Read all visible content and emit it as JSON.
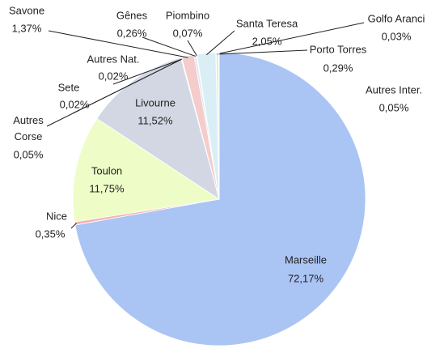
{
  "chart_data": {
    "type": "pie",
    "categories": [
      "Marseille",
      "Nice",
      "Toulon",
      "Livourne",
      "Autres Corse",
      "Sete",
      "Autres Nat.",
      "Savone",
      "Gênes",
      "Piombino",
      "Santa Teresa",
      "Golfo Aranci",
      "Porto Torres",
      "Autres Inter."
    ],
    "values": [
      72.17,
      0.35,
      11.75,
      11.52,
      0.05,
      0.02,
      0.02,
      1.37,
      0.26,
      0.07,
      2.05,
      0.03,
      0.29,
      0.05
    ],
    "value_labels": [
      "72,17%",
      "0,35%",
      "11,75%",
      "11,52%",
      "0,05%",
      "0,02%",
      "0,02%",
      "1,37%",
      "0,26%",
      "0,07%",
      "2,05%",
      "0,03%",
      "0,29%",
      "0,05%"
    ],
    "colors": [
      "#aac4f4",
      "#f4b4b4",
      "#eefdc8",
      "#d2d7e3",
      "#c8e8b0",
      "#e8d8f0",
      "#e6e6e6",
      "#f4cccc",
      "#dfe7f3",
      "#cfe3f0",
      "#d9eef5",
      "#f7d0b8",
      "#e0f0d8",
      "#f0c8c8"
    ]
  }
}
